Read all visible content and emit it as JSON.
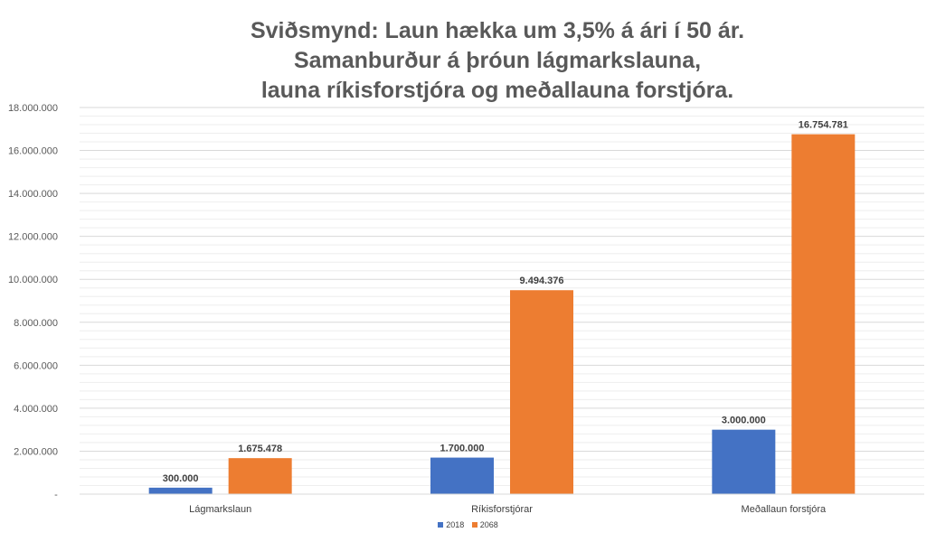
{
  "chart_data": {
    "type": "bar",
    "title_lines": [
      "Sviðsmynd: Laun hækka um 3,5% á ári í 50 ár.",
      "Samanburður á þróun lágmarkslauna,",
      "launa ríkisforstjóra og meðallauna forstjóra."
    ],
    "categories": [
      "Lágmarkslaun",
      "Ríkisforstjórar",
      "Meðallaun forstjóra"
    ],
    "series": [
      {
        "name": "2018",
        "color": "#4472C4",
        "values": [
          300000,
          1700000,
          3000000
        ],
        "labels": [
          "300.000",
          "1.700.000",
          "3.000.000"
        ]
      },
      {
        "name": "2068",
        "color": "#ED7D31",
        "values": [
          1675478,
          9494376,
          16754781
        ],
        "labels": [
          "1.675.478",
          "9.494.376",
          "16.754.781"
        ]
      }
    ],
    "ylim": [
      0,
      18000000
    ],
    "yticks": [
      0,
      2000000,
      4000000,
      6000000,
      8000000,
      10000000,
      12000000,
      14000000,
      16000000,
      18000000
    ],
    "ytick_labels": [
      "-",
      "2.000.000",
      "4.000.000",
      "6.000.000",
      "8.000.000",
      "10.000.000",
      "12.000.000",
      "14.000.000",
      "16.000.000",
      "18.000.000"
    ],
    "grid": true,
    "legend_position": "bottom"
  }
}
